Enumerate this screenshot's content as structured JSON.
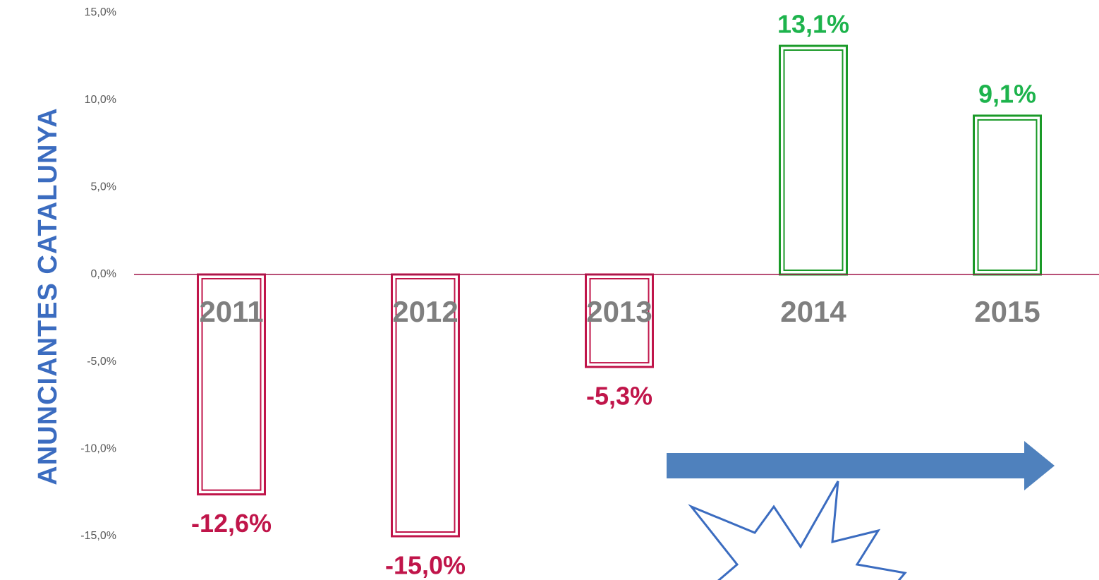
{
  "chart_data": {
    "type": "bar",
    "ylabel": "ANUNCIANTES CATALUNYA",
    "categories": [
      "2011",
      "2012",
      "2013",
      "2014",
      "2015"
    ],
    "values": [
      -12.6,
      -15.0,
      -5.3,
      13.1,
      9.1
    ],
    "value_labels": [
      "-12,6%",
      "-15,0%",
      "-5,3%",
      "13,1%",
      "9,1%"
    ],
    "colors": [
      "#c0154a",
      "#c0154a",
      "#c0154a",
      "#1a9a28",
      "#1a9a28"
    ],
    "label_colors": [
      "#c0154a",
      "#c0154a",
      "#c0154a",
      "#1db34c",
      "#1db34c"
    ],
    "ylim": [
      -15,
      15
    ],
    "yticks": [
      {
        "value": -15,
        "label": "-15,0%"
      },
      {
        "value": -10,
        "label": "-10,0%"
      },
      {
        "value": -5,
        "label": "-5,0%"
      },
      {
        "value": 0,
        "label": "0,0%"
      },
      {
        "value": 5,
        "label": "5,0%"
      },
      {
        "value": 10,
        "label": "10,0%"
      },
      {
        "value": 15,
        "label": "15,0%"
      }
    ],
    "grid": false
  }
}
